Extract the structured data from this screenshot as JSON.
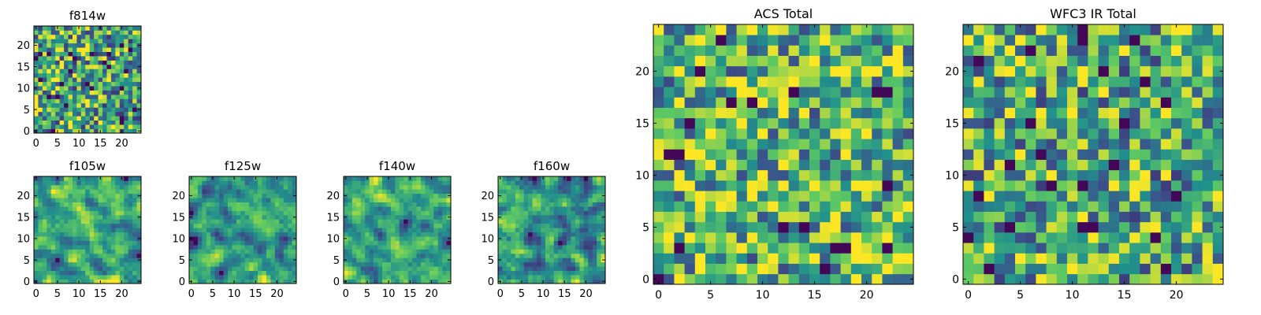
{
  "colormap": [
    "#440154",
    "#3b528b",
    "#21918c",
    "#5ec962",
    "#fde725"
  ],
  "chart_data": [
    {
      "type": "heatmap",
      "title": "f814w",
      "grid_size": 25,
      "seed": 814,
      "xlim": [
        -0.5,
        24.5
      ],
      "ylim": [
        -0.5,
        24.5
      ],
      "xticks": [
        0,
        5,
        10,
        15,
        20
      ],
      "yticks": [
        0,
        5,
        10,
        15,
        20
      ],
      "tick_labels": [
        "0",
        "5",
        "10",
        "15",
        "20"
      ],
      "value_range": [
        0,
        1
      ],
      "smooth": 0,
      "bias": 0.58
    },
    {
      "type": "heatmap",
      "title": "f105w",
      "grid_size": 25,
      "seed": 105,
      "xlim": [
        -0.5,
        24.5
      ],
      "ylim": [
        -0.5,
        24.5
      ],
      "xticks": [
        0,
        5,
        10,
        15,
        20
      ],
      "yticks": [
        0,
        5,
        10,
        15,
        20
      ],
      "tick_labels": [
        "0",
        "5",
        "10",
        "15",
        "20"
      ],
      "value_range": [
        0,
        1
      ],
      "smooth": 1,
      "bias": 0.62
    },
    {
      "type": "heatmap",
      "title": "f125w",
      "grid_size": 25,
      "seed": 125,
      "xlim": [
        -0.5,
        24.5
      ],
      "ylim": [
        -0.5,
        24.5
      ],
      "xticks": [
        0,
        5,
        10,
        15,
        20
      ],
      "yticks": [
        0,
        5,
        10,
        15,
        20
      ],
      "tick_labels": [
        "0",
        "5",
        "10",
        "15",
        "20"
      ],
      "value_range": [
        0,
        1
      ],
      "smooth": 1,
      "bias": 0.58
    },
    {
      "type": "heatmap",
      "title": "f140w",
      "grid_size": 25,
      "seed": 140,
      "xlim": [
        -0.5,
        24.5
      ],
      "ylim": [
        -0.5,
        24.5
      ],
      "xticks": [
        0,
        5,
        10,
        15,
        20
      ],
      "yticks": [
        0,
        5,
        10,
        15,
        20
      ],
      "tick_labels": [
        "0",
        "5",
        "10",
        "15",
        "20"
      ],
      "value_range": [
        0,
        1
      ],
      "smooth": 1,
      "bias": 0.6
    },
    {
      "type": "heatmap",
      "title": "f160w",
      "grid_size": 25,
      "seed": 160,
      "xlim": [
        -0.5,
        24.5
      ],
      "ylim": [
        -0.5,
        24.5
      ],
      "xticks": [
        0,
        5,
        10,
        15,
        20
      ],
      "yticks": [
        0,
        5,
        10,
        15,
        20
      ],
      "tick_labels": [
        "0",
        "5",
        "10",
        "15",
        "20"
      ],
      "value_range": [
        0,
        1
      ],
      "smooth": 1,
      "bias": 0.58
    },
    {
      "type": "heatmap",
      "title": "ACS Total",
      "grid_size": 25,
      "seed": 7,
      "xlim": [
        -0.5,
        24.5
      ],
      "ylim": [
        -0.5,
        24.5
      ],
      "xticks": [
        0,
        5,
        10,
        15,
        20
      ],
      "yticks": [
        0,
        5,
        10,
        15,
        20
      ],
      "tick_labels": [
        "0",
        "5",
        "10",
        "15",
        "20"
      ],
      "value_range": [
        0,
        1
      ],
      "smooth": 0,
      "bias": 0.64
    },
    {
      "type": "heatmap",
      "title": "WFC3 IR Total",
      "grid_size": 25,
      "seed": 31,
      "xlim": [
        -0.5,
        24.5
      ],
      "ylim": [
        -0.5,
        24.5
      ],
      "xticks": [
        0,
        5,
        10,
        15,
        20
      ],
      "yticks": [
        0,
        5,
        10,
        15,
        20
      ],
      "tick_labels": [
        "0",
        "5",
        "10",
        "15",
        "20"
      ],
      "value_range": [
        0,
        1
      ],
      "smooth": 0,
      "bias": 0.6
    }
  ]
}
